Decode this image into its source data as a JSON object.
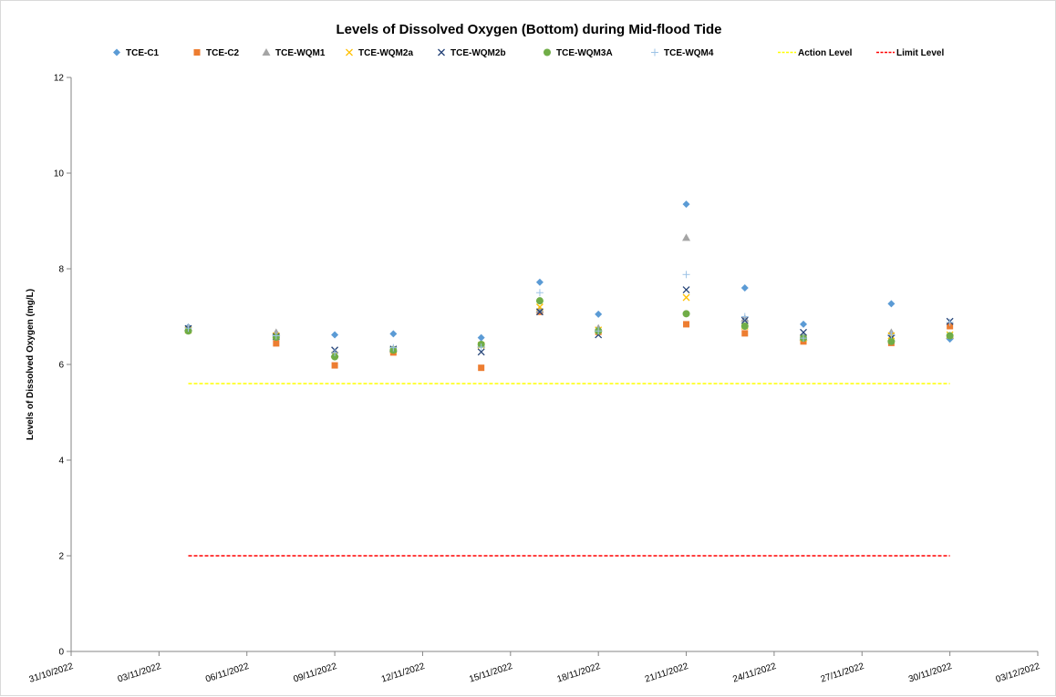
{
  "chart_data": {
    "type": "scatter",
    "title": "Levels of Dissolved Oxygen (Bottom) during Mid-flood Tide",
    "ylabel": "Levels of Dissolved Oxygen (mg/L)",
    "xlabel": "",
    "ylim": [
      0,
      12
    ],
    "yticks": [
      0,
      2,
      4,
      6,
      8,
      10,
      12
    ],
    "xlim": [
      "31/10/2022",
      "03/12/2022"
    ],
    "xtick_labels": [
      "31/10/2022",
      "03/11/2022",
      "06/11/2022",
      "09/11/2022",
      "12/11/2022",
      "15/11/2022",
      "18/11/2022",
      "21/11/2022",
      "24/11/2022",
      "27/11/2022",
      "30/11/2022",
      "03/12/2022"
    ],
    "grid": false,
    "legend_position": "top",
    "series": [
      {
        "name": "TCE-C1",
        "marker": "diamond",
        "color": "#5b9bd5",
        "x": [
          "04/11/2022",
          "07/11/2022",
          "09/11/2022",
          "11/11/2022",
          "14/11/2022",
          "16/11/2022",
          "18/11/2022",
          "21/11/2022",
          "23/11/2022",
          "25/11/2022",
          "28/11/2022",
          "30/11/2022"
        ],
        "y": [
          6.78,
          6.62,
          6.62,
          6.64,
          6.56,
          7.72,
          7.05,
          9.35,
          7.6,
          6.84,
          7.27,
          6.53
        ]
      },
      {
        "name": "TCE-C2",
        "marker": "square",
        "color": "#ed7d31",
        "x": [
          "07/11/2022",
          "09/11/2022",
          "11/11/2022",
          "14/11/2022",
          "16/11/2022",
          "18/11/2022",
          "21/11/2022",
          "23/11/2022",
          "25/11/2022",
          "28/11/2022",
          "30/11/2022"
        ],
        "y": [
          6.44,
          5.98,
          6.25,
          5.93,
          7.1,
          6.68,
          6.84,
          6.65,
          6.48,
          6.45,
          6.8
        ]
      },
      {
        "name": "TCE-WQM1",
        "marker": "triangle",
        "color": "#a5a5a5",
        "x": [
          "04/11/2022",
          "07/11/2022",
          "09/11/2022",
          "11/11/2022",
          "14/11/2022",
          "16/11/2022",
          "18/11/2022",
          "21/11/2022",
          "23/11/2022",
          "25/11/2022",
          "28/11/2022",
          "30/11/2022"
        ],
        "y": [
          6.77,
          6.67,
          6.22,
          6.33,
          6.42,
          7.15,
          6.76,
          8.65,
          6.96,
          6.57,
          6.67,
          6.6
        ]
      },
      {
        "name": "TCE-WQM2a",
        "marker": "x",
        "color": "#ffc000",
        "x": [
          "04/11/2022",
          "07/11/2022",
          "09/11/2022",
          "11/11/2022",
          "14/11/2022",
          "16/11/2022",
          "18/11/2022",
          "21/11/2022",
          "23/11/2022",
          "25/11/2022",
          "28/11/2022",
          "30/11/2022"
        ],
        "y": [
          6.72,
          6.6,
          6.2,
          6.3,
          6.4,
          7.2,
          6.72,
          7.4,
          6.8,
          6.55,
          6.6,
          6.62
        ]
      },
      {
        "name": "TCE-WQM2b",
        "marker": "x",
        "color": "#264478",
        "x": [
          "04/11/2022",
          "07/11/2022",
          "09/11/2022",
          "11/11/2022",
          "14/11/2022",
          "16/11/2022",
          "18/11/2022",
          "21/11/2022",
          "23/11/2022",
          "25/11/2022",
          "28/11/2022",
          "30/11/2022"
        ],
        "y": [
          6.75,
          6.58,
          6.3,
          6.32,
          6.26,
          7.1,
          6.62,
          7.56,
          6.92,
          6.67,
          6.55,
          6.9
        ]
      },
      {
        "name": "TCE-WQM3A",
        "marker": "circle",
        "color": "#70ad47",
        "x": [
          "04/11/2022",
          "07/11/2022",
          "09/11/2022",
          "11/11/2022",
          "14/11/2022",
          "16/11/2022",
          "18/11/2022",
          "21/11/2022",
          "23/11/2022",
          "25/11/2022",
          "28/11/2022",
          "30/11/2022"
        ],
        "y": [
          6.7,
          6.57,
          6.16,
          6.3,
          6.42,
          7.33,
          6.7,
          7.06,
          6.8,
          6.55,
          6.48,
          6.6
        ]
      },
      {
        "name": "TCE-WQM4",
        "marker": "plus",
        "color": "#9dc3e6",
        "x": [
          "04/11/2022",
          "07/11/2022",
          "09/11/2022",
          "11/11/2022",
          "14/11/2022",
          "16/11/2022",
          "18/11/2022",
          "21/11/2022",
          "23/11/2022",
          "25/11/2022",
          "28/11/2022",
          "30/11/2022"
        ],
        "y": [
          6.76,
          6.6,
          6.25,
          6.35,
          6.36,
          7.5,
          6.7,
          7.88,
          7.0,
          6.55,
          6.62,
          6.88
        ]
      }
    ],
    "reference_lines": [
      {
        "name": "Action Level",
        "color": "#ffff00",
        "style": "dashed",
        "y": 5.6,
        "x_start": "04/11/2022",
        "x_end": "30/11/2022"
      },
      {
        "name": "Limit Level",
        "color": "#ff0000",
        "style": "dashed",
        "y": 2,
        "x_start": "04/11/2022",
        "x_end": "30/11/2022"
      }
    ]
  }
}
